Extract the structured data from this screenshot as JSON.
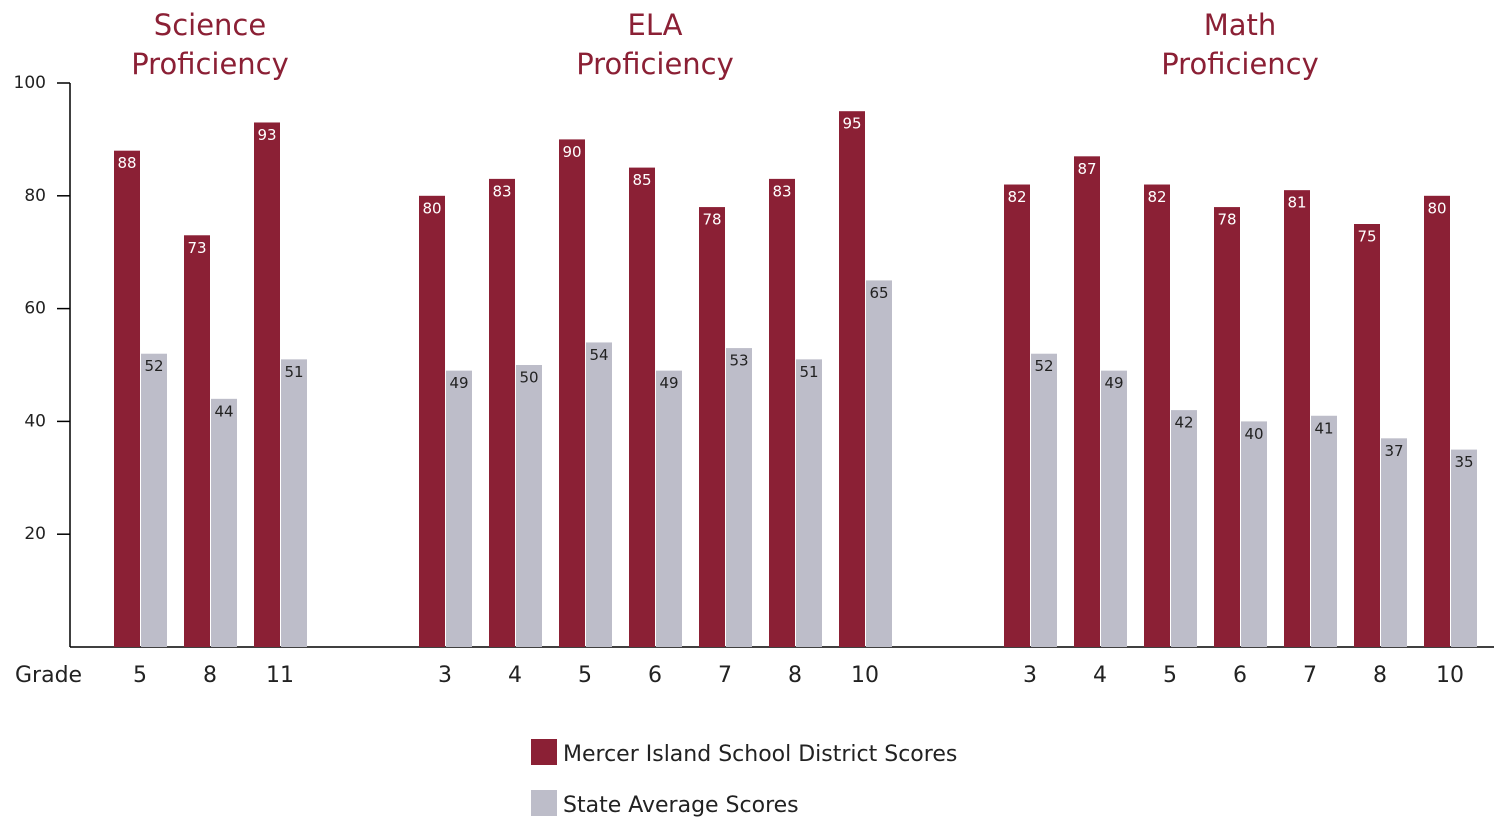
{
  "chart_data": {
    "type": "bar",
    "x_label": "Grade",
    "ylim": [
      0,
      100
    ],
    "yticks": [
      20,
      40,
      60,
      80,
      100
    ],
    "series": [
      {
        "name": "Mercer Island School District Scores",
        "color": "#8b2035"
      },
      {
        "name": "State Average Scores",
        "color": "#bdbdc9"
      }
    ],
    "panels": [
      {
        "title": [
          "Science",
          "Proficiency"
        ],
        "categories": [
          "5",
          "8",
          "11"
        ],
        "series_values": [
          [
            88,
            73,
            93
          ],
          [
            52,
            44,
            51
          ]
        ]
      },
      {
        "title": [
          "ELA",
          "Proficiency"
        ],
        "categories": [
          "3",
          "4",
          "5",
          "6",
          "7",
          "8",
          "10"
        ],
        "series_values": [
          [
            80,
            83,
            90,
            85,
            78,
            83,
            95
          ],
          [
            49,
            50,
            54,
            49,
            53,
            51,
            65
          ]
        ]
      },
      {
        "title": [
          "Math",
          "Proficiency"
        ],
        "categories": [
          "3",
          "4",
          "5",
          "6",
          "7",
          "8",
          "10"
        ],
        "series_values": [
          [
            82,
            87,
            82,
            78,
            81,
            75,
            80
          ],
          [
            52,
            49,
            42,
            40,
            41,
            37,
            35
          ]
        ]
      }
    ]
  }
}
